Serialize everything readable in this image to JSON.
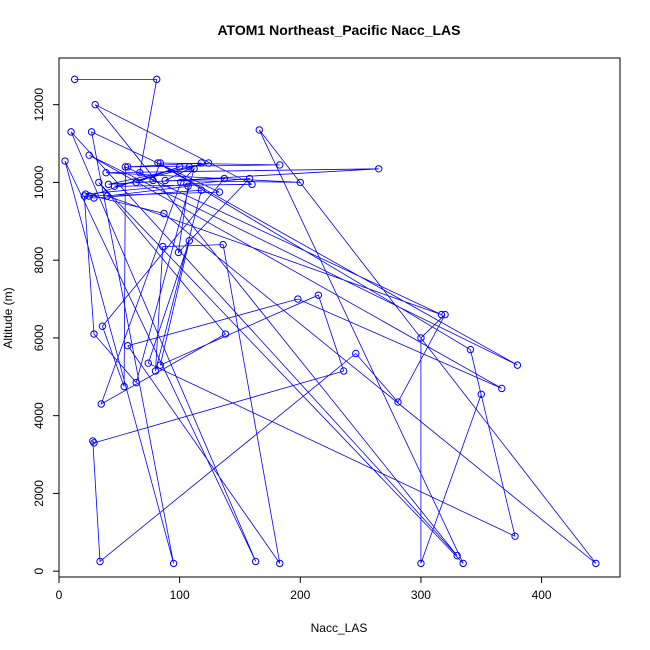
{
  "chart_data": {
    "type": "line",
    "title": "ATOM1 Northeast_Pacific Nacc_LAS",
    "xlabel": "Nacc_LAS",
    "ylabel": "Altitude (m)",
    "xlim": [
      0,
      465
    ],
    "ylim": [
      -150,
      13200
    ],
    "x_ticks": [
      0,
      100,
      200,
      300,
      400
    ],
    "y_ticks": [
      0,
      2000,
      4000,
      6000,
      8000,
      10000,
      12000
    ],
    "grid": false,
    "legend": "none",
    "line_color": "#0000ff",
    "marker": "open-circle",
    "series": [
      {
        "points": [
          [
            13,
            12650
          ],
          [
            81,
            12650
          ],
          [
            67,
            10250
          ],
          [
            78,
            10050
          ],
          [
            84,
            10500
          ],
          [
            183,
            10450
          ],
          [
            57,
            10400
          ],
          [
            118,
            10500
          ],
          [
            88,
            10050
          ],
          [
            200,
            10000
          ],
          [
            39,
            10250
          ],
          [
            265,
            10350
          ],
          [
            41,
            9950
          ],
          [
            108,
            10400
          ],
          [
            124,
            10500
          ],
          [
            46,
            9900
          ],
          [
            160,
            9950
          ],
          [
            30,
            12000
          ],
          [
            330,
            400
          ],
          [
            10,
            11300
          ],
          [
            163,
            250
          ],
          [
            5,
            10550
          ],
          [
            95,
            200
          ],
          [
            27,
            11300
          ],
          [
            133,
            9750
          ],
          [
            25,
            9650
          ],
          [
            100,
            10400
          ],
          [
            64,
            10000
          ],
          [
            137,
            10100
          ],
          [
            36,
            6300
          ],
          [
            54,
            4750
          ],
          [
            55,
            10400
          ],
          [
            317,
            6600
          ],
          [
            40,
            9650
          ],
          [
            107,
            9900
          ],
          [
            99,
            8200
          ],
          [
            158,
            10100
          ],
          [
            22,
            9700
          ],
          [
            87,
            9200
          ],
          [
            445,
            200
          ],
          [
            166,
            11350
          ],
          [
            335,
            200
          ],
          [
            33,
            10000
          ],
          [
            138,
            6100
          ],
          [
            35,
            4300
          ],
          [
            101,
            10000
          ],
          [
            112,
            10350
          ],
          [
            64,
            4850
          ],
          [
            29,
            6100
          ],
          [
            21,
            9650
          ],
          [
            29,
            9600
          ],
          [
            118,
            9800
          ],
          [
            80,
            5150
          ],
          [
            86,
            8350
          ],
          [
            136,
            8400
          ],
          [
            183,
            200
          ],
          [
            57,
            5800
          ],
          [
            198,
            7000
          ],
          [
            367,
            4700
          ],
          [
            25,
            10700
          ],
          [
            380,
            5300
          ],
          [
            82,
            10500
          ],
          [
            341,
            5700
          ],
          [
            378,
            900
          ],
          [
            74,
            5350
          ],
          [
            108,
            8500
          ],
          [
            84,
            5300
          ],
          [
            215,
            7100
          ],
          [
            236,
            5150
          ],
          [
            29,
            3300
          ],
          [
            28,
            3350
          ],
          [
            34,
            250
          ],
          [
            246,
            5600
          ],
          [
            281,
            4350
          ],
          [
            320,
            6600
          ],
          [
            300,
            6000
          ],
          [
            300,
            200
          ],
          [
            350,
            4550
          ]
        ]
      }
    ]
  }
}
